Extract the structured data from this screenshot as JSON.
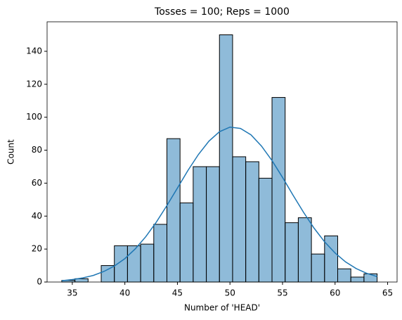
{
  "chart_data": {
    "type": "histogram",
    "title": "Tosses = 100; Reps = 1000",
    "x_label": "Number of 'HEAD'",
    "y_label": "Count",
    "bins": [
      34,
      35.25,
      36.5,
      37.75,
      39,
      40.25,
      41.5,
      42.75,
      44,
      45.25,
      46.5,
      47.75,
      49,
      50.25,
      51.5,
      52.75,
      54,
      55.25,
      56.5,
      57.75,
      59,
      60.25,
      61.5,
      62.75,
      64
    ],
    "counts": [
      1,
      2,
      0,
      10,
      22,
      22,
      23,
      35,
      87,
      48,
      70,
      70,
      150,
      76,
      73,
      63,
      112,
      36,
      39,
      17,
      28,
      8,
      3,
      5
    ],
    "color": "#1f77b4",
    "kde": {
      "x": [
        34,
        35,
        36,
        37,
        38,
        39,
        40,
        41,
        42,
        43,
        44,
        45,
        46,
        47,
        48,
        49,
        50,
        51,
        52,
        53,
        54,
        55,
        56,
        57,
        58,
        59,
        60,
        61,
        62,
        63,
        64
      ],
      "y": [
        0.8,
        1.5,
        2.5,
        4.0,
        6.4,
        9.7,
        14.2,
        20.2,
        27.6,
        36.4,
        46.4,
        57,
        67.7,
        77.4,
        85.5,
        91.2,
        94,
        93.2,
        89.3,
        82.5,
        73.7,
        63.5,
        52.7,
        42.3,
        32.7,
        24.4,
        17.6,
        12.2,
        8.2,
        5.3,
        3.3
      ],
      "color": "#1f77b4"
    },
    "xlim": [
      32.6,
      65.9
    ],
    "xticks": [
      35,
      40,
      45,
      50,
      55,
      60,
      65
    ],
    "ylim": [
      0,
      157.9
    ],
    "yticks": [
      0,
      20,
      40,
      60,
      80,
      100,
      120,
      140
    ],
    "grid": false
  }
}
